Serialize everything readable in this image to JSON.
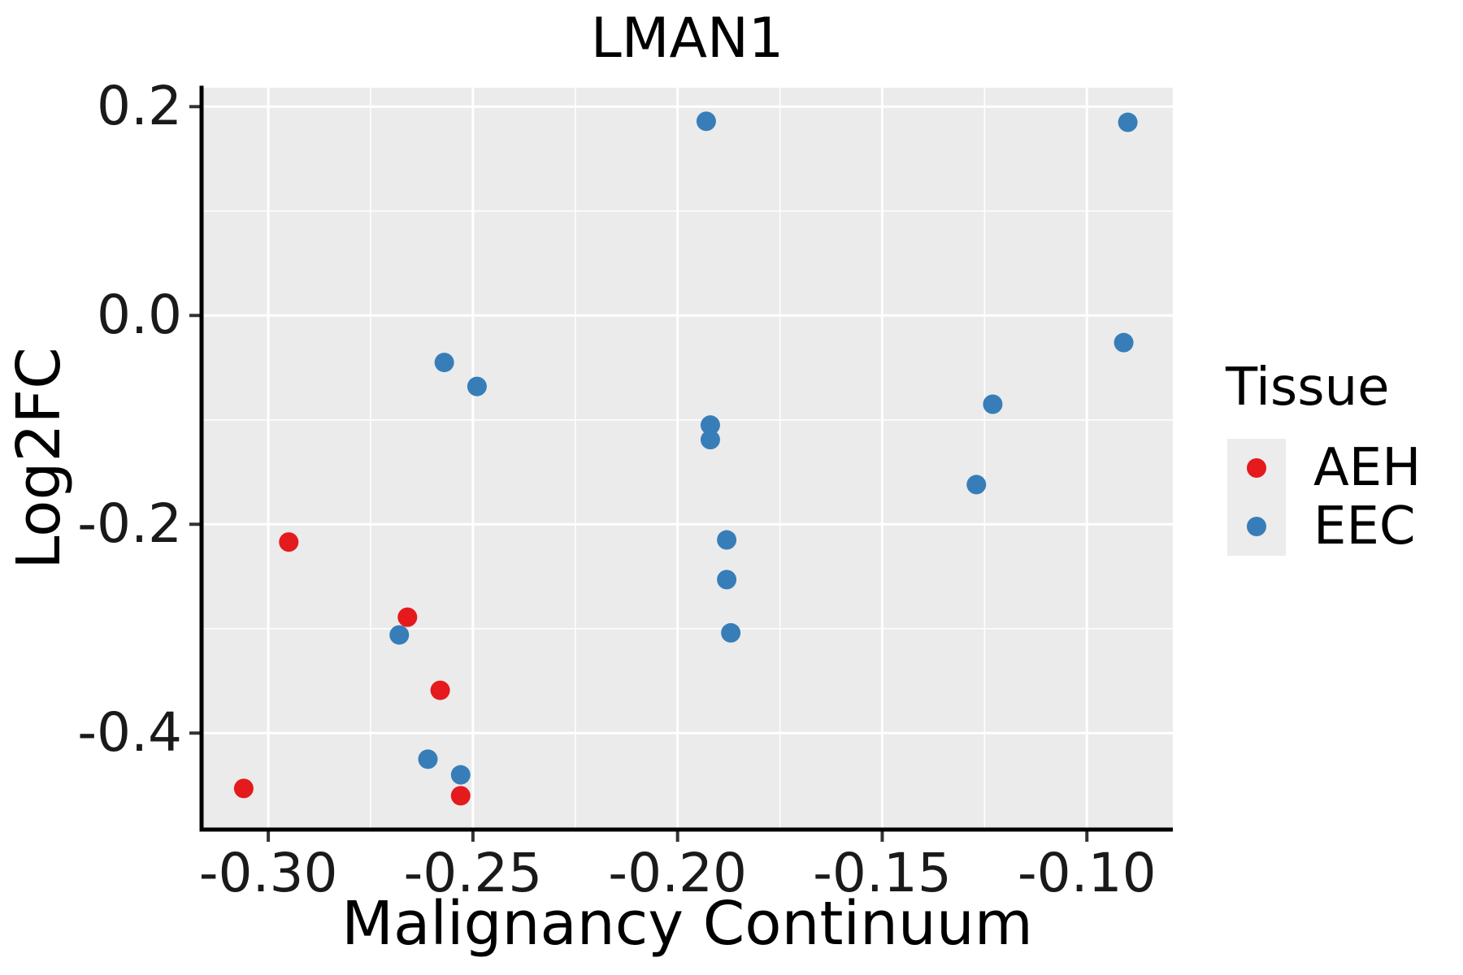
{
  "title": "LMAN1",
  "chart_data": {
    "type": "scatter",
    "title": "LMAN1",
    "xlabel": "Malignancy Continuum",
    "ylabel": "Log2FC",
    "xlim": [
      -0.3163,
      -0.079
    ],
    "ylim": [
      -0.4924,
      0.2181
    ],
    "x_ticks": {
      "values": [
        -0.3,
        -0.25,
        -0.2,
        -0.15,
        -0.1
      ],
      "labels": [
        "-0.30",
        "-0.25",
        "-0.20",
        "-0.15",
        "-0.10"
      ]
    },
    "y_ticks": {
      "values": [
        0.2,
        0.0,
        -0.2,
        -0.4
      ],
      "labels": [
        "0.2",
        "0.0",
        "-0.2",
        "-0.4"
      ]
    },
    "x_minor": [
      -0.275,
      -0.225,
      -0.175,
      -0.125
    ],
    "y_minor": [
      0.1,
      -0.1,
      -0.3
    ],
    "grid": true,
    "legend_position": "right",
    "point_radius": 12,
    "series": [
      {
        "name": "AEH",
        "color": "#E41A1C",
        "points": [
          [
            -0.295,
            -0.217
          ],
          [
            -0.266,
            -0.289
          ],
          [
            -0.258,
            -0.359
          ],
          [
            -0.306,
            -0.453
          ],
          [
            -0.253,
            -0.46
          ]
        ]
      },
      {
        "name": "EEC",
        "color": "#377EB8",
        "points": [
          [
            -0.193,
            0.186
          ],
          [
            -0.09,
            0.185
          ],
          [
            -0.257,
            -0.045
          ],
          [
            -0.249,
            -0.068
          ],
          [
            -0.091,
            -0.026
          ],
          [
            -0.123,
            -0.085
          ],
          [
            -0.127,
            -0.162
          ],
          [
            -0.192,
            -0.105
          ],
          [
            -0.192,
            -0.119
          ],
          [
            -0.188,
            -0.215
          ],
          [
            -0.188,
            -0.253
          ],
          [
            -0.187,
            -0.304
          ],
          [
            -0.268,
            -0.306
          ],
          [
            -0.261,
            -0.425
          ],
          [
            -0.253,
            -0.44
          ]
        ]
      }
    ]
  },
  "legend": {
    "title": "Tissue",
    "items": [
      {
        "label": "AEH",
        "color": "#E41A1C"
      },
      {
        "label": "EEC",
        "color": "#377EB8"
      }
    ]
  },
  "colors": {
    "panel_bg": "#EBEBEB",
    "grid_major": "#FFFFFF",
    "grid_minor": "#FFFFFF",
    "axis_line": "#000000",
    "tick_mark": "#333333",
    "legend_key_bg": "#ECECEC"
  }
}
